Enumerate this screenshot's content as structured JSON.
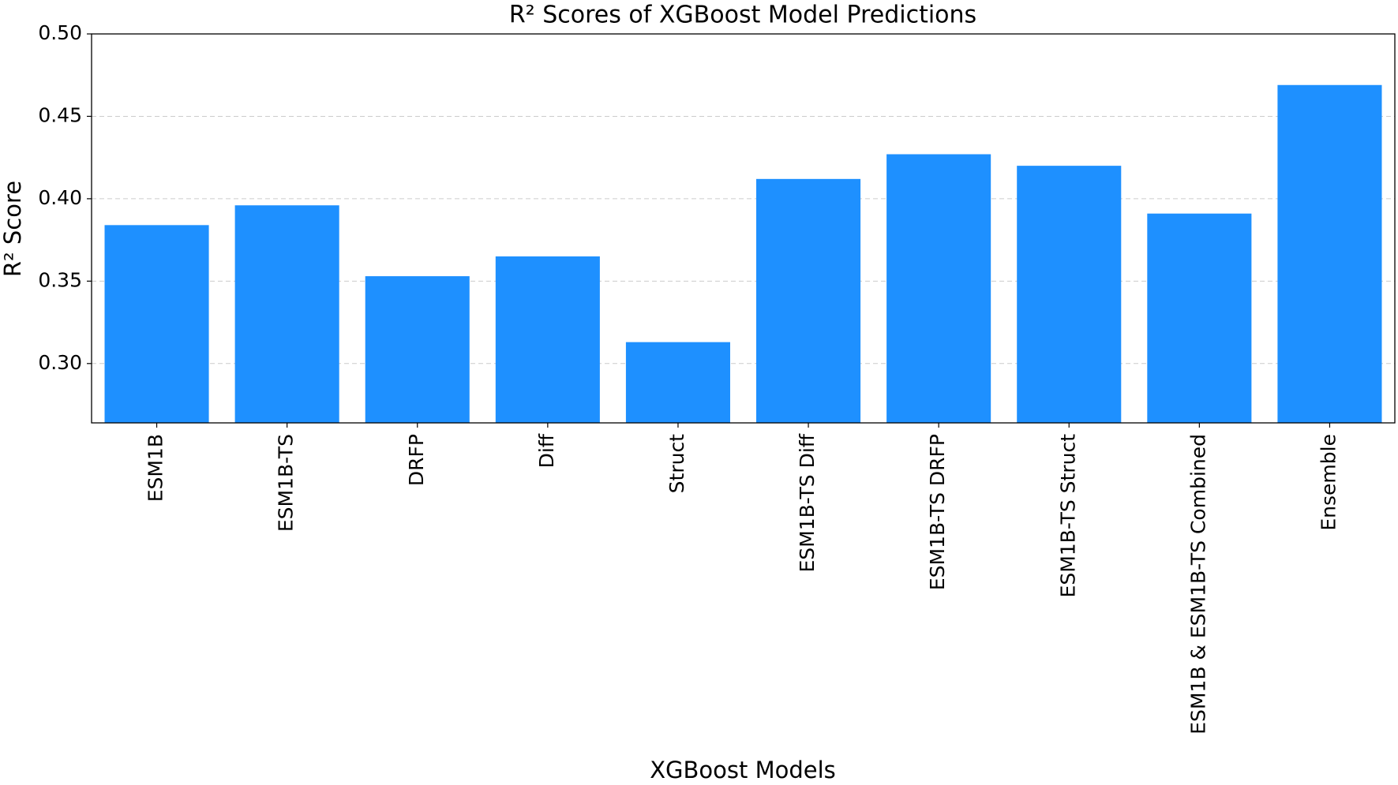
{
  "chart_data": {
    "type": "bar",
    "title": "R² Scores of XGBoost Model Predictions",
    "x_label": "XGBoost Models",
    "y_label": "R² Score",
    "categories": [
      "ESM1B",
      "ESM1B-TS",
      "DRFP",
      "Diff",
      "Struct",
      "ESM1B-TS Diff",
      "ESM1B-TS DRFP",
      "ESM1B-TS Struct",
      "ESM1B & ESM1B-TS Combined",
      "Ensemble"
    ],
    "values": [
      0.384,
      0.396,
      0.353,
      0.365,
      0.313,
      0.412,
      0.427,
      0.42,
      0.391,
      0.469
    ],
    "color": "#1e90ff",
    "ylim": [
      0.264,
      0.5
    ],
    "yticks": [
      {
        "value": 0.3,
        "label": "0.30"
      },
      {
        "value": 0.35,
        "label": "0.35"
      },
      {
        "value": 0.4,
        "label": "0.40"
      },
      {
        "value": 0.45,
        "label": "0.45"
      },
      {
        "value": 0.5,
        "label": "0.50"
      }
    ],
    "grid": true
  }
}
